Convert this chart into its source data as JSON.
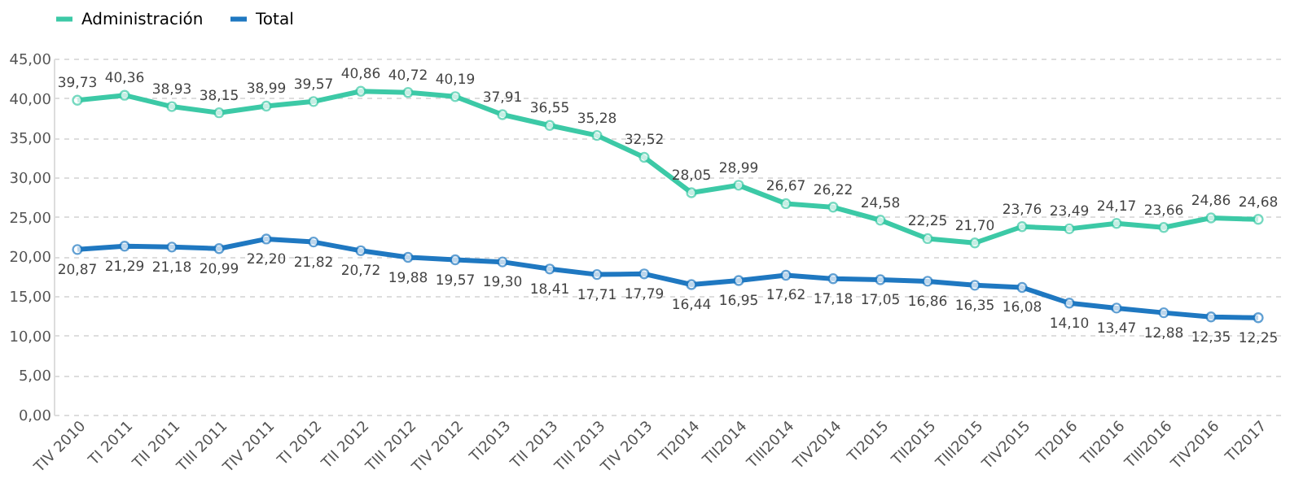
{
  "chart_data": {
    "type": "line",
    "categories": [
      "TIV 2010",
      "TI 2011",
      "TII 2011",
      "TIII 2011",
      "TIV 2011",
      "TI 2012",
      "TII 2012",
      "TIII 2012",
      "TIV 2012",
      "TI2013",
      "TII 2013",
      "TIII 2013",
      "TIV 2013",
      "TI2014",
      "TII2014",
      "TIII2014",
      "TIV2014",
      "TI2015",
      "TII2015",
      "TIII2015",
      "TIV2015",
      "TI2016",
      "TII2016",
      "TIII2016",
      "TIV2016",
      "TI2017"
    ],
    "series": [
      {
        "name": "Administración",
        "color": "#3cc9a6",
        "values": [
          39.73,
          40.36,
          38.93,
          38.15,
          38.99,
          39.57,
          40.86,
          40.72,
          40.19,
          37.91,
          36.55,
          35.28,
          32.52,
          28.05,
          28.99,
          26.67,
          26.22,
          24.58,
          22.25,
          21.7,
          23.76,
          23.49,
          24.17,
          23.66,
          24.86,
          24.68
        ],
        "value_labels": [
          "39,73",
          "40,36",
          "38,93",
          "38,15",
          "38,99",
          "39,57",
          "40,86",
          "40,72",
          "40,19",
          "37,91",
          "36,55",
          "35,28",
          "32,52",
          "28,05",
          "28,99",
          "26,67",
          "26,22",
          "24,58",
          "22,25",
          "21,70",
          "23,76",
          "23,49",
          "24,17",
          "23,66",
          "24,86",
          "24,68"
        ]
      },
      {
        "name": "Total",
        "color": "#1f78c1",
        "values": [
          20.87,
          21.29,
          21.18,
          20.99,
          22.2,
          21.82,
          20.72,
          19.88,
          19.57,
          19.3,
          18.41,
          17.71,
          17.79,
          16.44,
          16.95,
          17.62,
          17.18,
          17.05,
          16.86,
          16.35,
          16.08,
          14.1,
          13.47,
          12.88,
          12.35,
          12.25
        ],
        "value_labels": [
          "20,87",
          "21,29",
          "21,18",
          "20,99",
          "22,20",
          "21,82",
          "20,72",
          "19,88",
          "19,57",
          "19,30",
          "18,41",
          "17,71",
          "17,79",
          "16,44",
          "16,95",
          "17,62",
          "17,18",
          "17,05",
          "16,86",
          "16,35",
          "16,08",
          "14,10",
          "13,47",
          "12,88",
          "12,35",
          "12,25"
        ]
      }
    ],
    "ylim": [
      0,
      45
    ],
    "yticks": [
      {
        "value": 0,
        "label": "0,00"
      },
      {
        "value": 5,
        "label": "5,00"
      },
      {
        "value": 10,
        "label": "10,00"
      },
      {
        "value": 15,
        "label": "15,00"
      },
      {
        "value": 20,
        "label": "20,00"
      },
      {
        "value": 25,
        "label": "25,00"
      },
      {
        "value": 30,
        "label": "30,00"
      },
      {
        "value": 35,
        "label": "35,00"
      },
      {
        "value": 40,
        "label": "40,00"
      },
      {
        "value": 45,
        "label": "45,00"
      }
    ],
    "grid": "y",
    "legend": "top",
    "marker": "circle",
    "line_style": "solid"
  }
}
